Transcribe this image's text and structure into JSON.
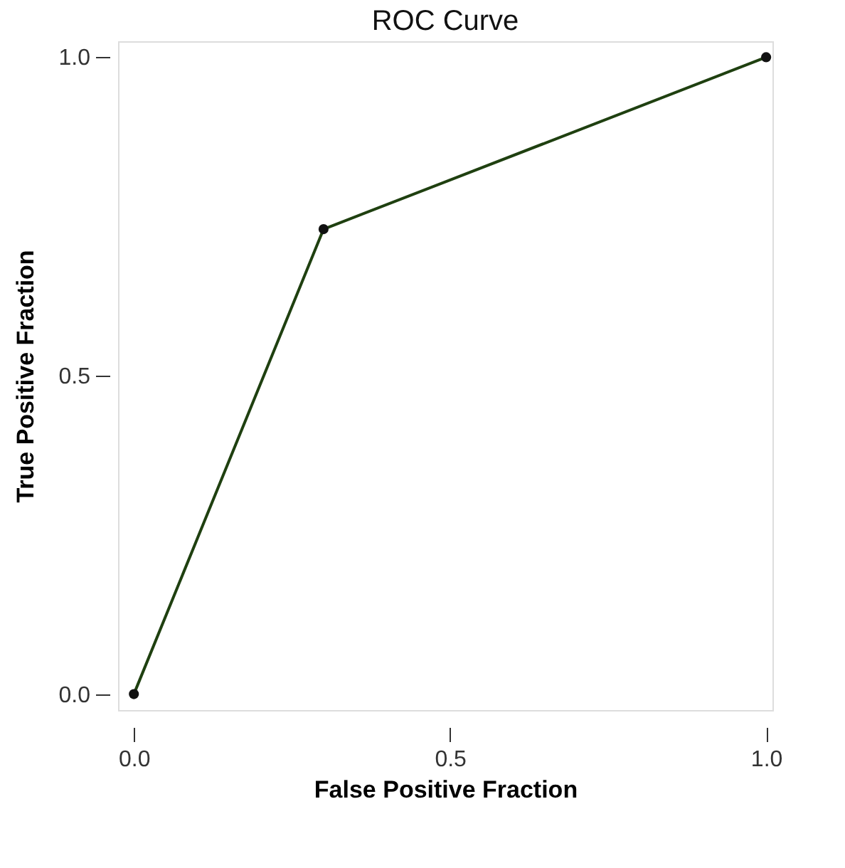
{
  "chart_data": {
    "type": "line",
    "title": "ROC Curve",
    "xlabel": "False Positive Fraction",
    "ylabel": "True Positive Fraction",
    "x": [
      0.0,
      0.3,
      1.0
    ],
    "series": [
      {
        "color": "#1f4010",
        "values": [
          0.0,
          0.73,
          1.0
        ]
      }
    ],
    "xlim": [
      -0.025,
      1.01
    ],
    "ylim": [
      -0.025,
      1.025
    ],
    "xticks": [
      {
        "value": 0,
        "label": "0.0"
      },
      {
        "value": 0.5,
        "label": "0.5"
      },
      {
        "value": 1,
        "label": "1.0"
      }
    ],
    "yticks": [
      {
        "value": 0,
        "label": "0.0"
      },
      {
        "value": 0.5,
        "label": "0.5"
      },
      {
        "value": 1,
        "label": "1.0"
      }
    ],
    "grid": false,
    "marker": "circle",
    "line_style": "solid",
    "legend": false
  }
}
